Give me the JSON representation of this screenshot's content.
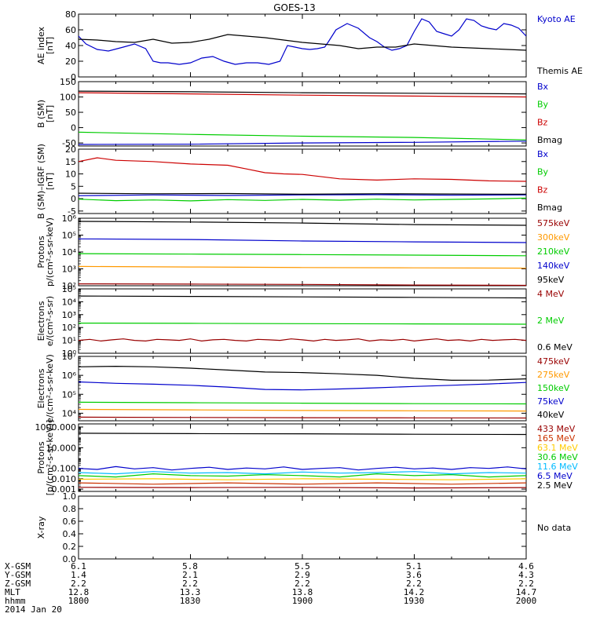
{
  "title": "GOES-13",
  "ephemeris": {
    "labels": [
      "X-GSM",
      "Y-GSM",
      "Z-GSM",
      "MLT",
      "hhmm"
    ],
    "date": "2014 Jan 20",
    "columns": [
      [
        "6.1",
        "1.4",
        "2.2",
        "12.8",
        "1800"
      ],
      [
        "5.8",
        "2.1",
        "2.2",
        "13.3",
        "1830"
      ],
      [
        "5.5",
        "2.9",
        "2.2",
        "13.8",
        "1900"
      ],
      [
        "5.1",
        "3.6",
        "2.2",
        "14.2",
        "1930"
      ],
      [
        "4.6",
        "4.3",
        "2.2",
        "14.7",
        "2000"
      ]
    ]
  },
  "chart_data": [
    {
      "type": "line",
      "id": "ae",
      "ylabel": [
        "AE index",
        "[nT]"
      ],
      "yscale": "linear",
      "ylim": [
        0,
        80
      ],
      "yticks": [
        0,
        20,
        40,
        60,
        80
      ],
      "ytick_labels": [
        "0",
        "20",
        "40",
        "60",
        "80"
      ],
      "xlim": [
        0,
        120
      ],
      "series": [
        {
          "name": "Kyoto AE",
          "color": "#0000cc",
          "x": [
            0,
            2,
            5,
            8,
            12,
            15,
            18,
            20,
            22,
            24,
            27,
            30,
            33,
            36,
            39,
            42,
            45,
            48,
            51,
            54,
            56,
            58,
            60,
            62,
            64,
            66,
            67,
            69,
            72,
            75,
            78,
            80,
            82,
            84,
            86,
            88,
            90,
            92,
            94,
            96,
            98,
            100,
            102,
            104,
            106,
            108,
            110,
            112,
            114,
            116,
            118,
            120
          ],
          "y": [
            52,
            42,
            35,
            33,
            38,
            42,
            36,
            20,
            18,
            18,
            16,
            18,
            24,
            26,
            20,
            16,
            18,
            18,
            16,
            20,
            40,
            38,
            36,
            35,
            36,
            38,
            45,
            60,
            68,
            62,
            50,
            45,
            38,
            34,
            36,
            40,
            58,
            74,
            70,
            58,
            55,
            52,
            60,
            74,
            72,
            65,
            62,
            60,
            68,
            66,
            62,
            52
          ]
        },
        {
          "name": "Themis AE",
          "color": "#000000",
          "x": [
            0,
            5,
            10,
            15,
            20,
            25,
            30,
            35,
            40,
            45,
            50,
            55,
            60,
            65,
            70,
            75,
            80,
            85,
            90,
            95,
            100,
            105,
            110,
            115,
            120
          ],
          "y": [
            48,
            47,
            45,
            44,
            48,
            43,
            44,
            48,
            54,
            52,
            50,
            47,
            44,
            42,
            40,
            36,
            38,
            38,
            42,
            40,
            38,
            37,
            36,
            35,
            34
          ]
        }
      ]
    },
    {
      "type": "line",
      "id": "bsm",
      "ylabel": [
        "B (SM)",
        "[nT]"
      ],
      "yscale": "linear",
      "ylim": [
        -60,
        150
      ],
      "yticks": [
        -50,
        0,
        50,
        100,
        150
      ],
      "ytick_labels": [
        "-50",
        "0",
        "50",
        "100",
        "150"
      ],
      "xlim": [
        0,
        120
      ],
      "series": [
        {
          "name": "Bx",
          "color": "#0000cc",
          "x": [
            0,
            30,
            60,
            90,
            120
          ],
          "y": [
            -55,
            -54,
            -50,
            -48,
            -44
          ]
        },
        {
          "name": "By",
          "color": "#00cc00",
          "x": [
            0,
            30,
            60,
            90,
            120
          ],
          "y": [
            -15,
            -22,
            -28,
            -32,
            -40
          ]
        },
        {
          "name": "Bz",
          "color": "#cc0000",
          "x": [
            0,
            30,
            60,
            90,
            120
          ],
          "y": [
            114,
            110,
            106,
            103,
            100
          ]
        },
        {
          "name": "Bmag",
          "color": "#000000",
          "x": [
            0,
            30,
            60,
            90,
            120
          ],
          "y": [
            119,
            117,
            114,
            112,
            110
          ]
        }
      ]
    },
    {
      "type": "line",
      "id": "bigrf",
      "ylabel": [
        "B (SM)–IGRF (SM)",
        "[nT]"
      ],
      "yscale": "linear",
      "ylim": [
        -6,
        20
      ],
      "yticks": [
        -5,
        0,
        5,
        10,
        15,
        20
      ],
      "ytick_labels": [
        "-5",
        "0",
        "5",
        "10",
        "15",
        "20"
      ],
      "xlim": [
        0,
        120
      ],
      "series": [
        {
          "name": "Bx",
          "color": "#0000cc",
          "x": [
            0,
            20,
            40,
            60,
            80,
            100,
            120
          ],
          "y": [
            1.2,
            1.5,
            1.3,
            1.5,
            1.6,
            1.4,
            1.5
          ]
        },
        {
          "name": "By",
          "color": "#00cc00",
          "x": [
            0,
            10,
            20,
            30,
            40,
            50,
            60,
            70,
            80,
            90,
            100,
            110,
            120
          ],
          "y": [
            -0.2,
            -0.8,
            -0.5,
            -0.9,
            -0.4,
            -0.7,
            -0.3,
            -0.6,
            -0.2,
            -0.5,
            -0.3,
            -0.1,
            0.2
          ]
        },
        {
          "name": "Bz",
          "color": "#cc0000",
          "x": [
            0,
            5,
            10,
            20,
            30,
            40,
            45,
            50,
            55,
            60,
            70,
            80,
            90,
            100,
            110,
            120
          ],
          "y": [
            15,
            16.5,
            15.5,
            15,
            14,
            13.5,
            12,
            10.5,
            10,
            9.8,
            8,
            7.5,
            8,
            7.8,
            7.2,
            7
          ]
        },
        {
          "name": "Bmag",
          "color": "#000000",
          "x": [
            0,
            20,
            40,
            60,
            80,
            100,
            120
          ],
          "y": [
            2.2,
            2.0,
            2.1,
            1.8,
            2.0,
            1.9,
            1.8
          ]
        }
      ]
    },
    {
      "type": "line",
      "id": "protons_kev",
      "ylabel": [
        "Protons",
        "p/(cm²-s-sr-keV)"
      ],
      "yscale": "log",
      "ylim": [
        100,
        1000000
      ],
      "yticks": [
        100,
        1000,
        10000,
        100000,
        1000000
      ],
      "ytick_labels": [
        "10²",
        "10³",
        "10⁴",
        "10⁵",
        "10⁶"
      ],
      "xlim": [
        0,
        120
      ],
      "series": [
        {
          "name": "575keV",
          "color": "#990000",
          "x": [
            0,
            30,
            60,
            90,
            120
          ],
          "y": [
            130,
            125,
            120,
            110,
            105
          ]
        },
        {
          "name": "300keV",
          "color": "#ff9900",
          "x": [
            0,
            30,
            60,
            90,
            120
          ],
          "y": [
            1400,
            1300,
            1200,
            1150,
            1100
          ]
        },
        {
          "name": "210keV",
          "color": "#00cc00",
          "x": [
            0,
            30,
            60,
            90,
            120
          ],
          "y": [
            8000,
            7500,
            7000,
            6500,
            6000
          ]
        },
        {
          "name": "140keV",
          "color": "#0000cc",
          "x": [
            0,
            30,
            60,
            90,
            120
          ],
          "y": [
            60000,
            55000,
            45000,
            40000,
            36000
          ]
        },
        {
          "name": "95keV",
          "color": "#000000",
          "x": [
            0,
            30,
            60,
            90,
            120
          ],
          "y": [
            650000,
            600000,
            520000,
            420000,
            380000
          ]
        }
      ]
    },
    {
      "type": "line",
      "id": "electrons_mev",
      "ylabel": [
        "Electrons",
        "e/(cm²-s-sr)"
      ],
      "yscale": "log",
      "ylim": [
        1,
        100000
      ],
      "yticks": [
        1,
        10,
        100,
        1000,
        10000,
        100000
      ],
      "ytick_labels": [
        "10⁰",
        "10¹",
        "10²",
        "10³",
        "10⁴",
        "10⁵"
      ],
      "xlim": [
        0,
        120
      ],
      "series": [
        {
          "name": "4 MeV",
          "color": "#990000",
          "x": [
            0,
            3,
            6,
            9,
            12,
            15,
            18,
            21,
            24,
            27,
            30,
            33,
            36,
            39,
            42,
            45,
            48,
            51,
            54,
            57,
            60,
            63,
            66,
            69,
            72,
            75,
            78,
            81,
            84,
            87,
            90,
            93,
            96,
            99,
            102,
            105,
            108,
            111,
            114,
            117,
            120
          ],
          "y": [
            10,
            12,
            9,
            11,
            13,
            10,
            9,
            12,
            11,
            10,
            13,
            9,
            11,
            12,
            10,
            9,
            12,
            11,
            10,
            13,
            11,
            9,
            12,
            10,
            11,
            13,
            9,
            11,
            10,
            12,
            9,
            11,
            13,
            10,
            11,
            9,
            12,
            10,
            11,
            12,
            10
          ]
        },
        {
          "name": "2 MeV",
          "color": "#00cc00",
          "x": [
            0,
            30,
            60,
            90,
            120
          ],
          "y": [
            220,
            210,
            200,
            190,
            180
          ]
        },
        {
          "name": "0.6 MeV",
          "color": "#000000",
          "x": [
            0,
            30,
            60,
            90,
            120
          ],
          "y": [
            28000,
            26000,
            24000,
            22000,
            20000
          ]
        }
      ]
    },
    {
      "type": "line",
      "id": "electrons_kev",
      "ylabel": [
        "Electrons",
        "e/(cm²-s-sr-keV)"
      ],
      "yscale": "log",
      "ylim": [
        4000,
        10000000
      ],
      "yticks": [
        10000,
        100000,
        1000000,
        10000000
      ],
      "ytick_labels": [
        "10⁴",
        "10⁵",
        "10⁶",
        "10⁷"
      ],
      "xlim": [
        0,
        120
      ],
      "series": [
        {
          "name": "475keV",
          "color": "#990000",
          "x": [
            0,
            30,
            60,
            90,
            120
          ],
          "y": [
            6200,
            6000,
            5800,
            5700,
            5600
          ]
        },
        {
          "name": "275keV",
          "color": "#ff9900",
          "x": [
            0,
            30,
            60,
            90,
            120
          ],
          "y": [
            16000,
            15000,
            14000,
            13500,
            13000
          ]
        },
        {
          "name": "150keV",
          "color": "#00cc00",
          "x": [
            0,
            30,
            60,
            90,
            120
          ],
          "y": [
            38000,
            36000,
            34000,
            32000,
            31000
          ]
        },
        {
          "name": "75keV",
          "color": "#0000cc",
          "x": [
            0,
            10,
            20,
            30,
            40,
            50,
            60,
            70,
            80,
            90,
            100,
            110,
            120
          ],
          "y": [
            450000,
            380000,
            340000,
            300000,
            240000,
            180000,
            170000,
            190000,
            220000,
            260000,
            300000,
            350000,
            420000
          ]
        },
        {
          "name": "40keV",
          "color": "#000000",
          "x": [
            0,
            10,
            20,
            30,
            40,
            50,
            60,
            70,
            80,
            90,
            100,
            110,
            120
          ],
          "y": [
            2800000,
            3000000,
            2800000,
            2400000,
            1900000,
            1500000,
            1400000,
            1200000,
            1000000,
            700000,
            550000,
            560000,
            650000
          ]
        }
      ]
    },
    {
      "type": "line",
      "id": "protons_mev",
      "ylabel": [
        "Protons",
        "[p/(cm²-s-sr-keV)]"
      ],
      "yscale": "log",
      "ylim": [
        0.0006,
        2000
      ],
      "yticks": [
        0.001,
        0.01,
        0.1,
        10,
        1000
      ],
      "ytick_labels": [
        "0.001",
        "0.010",
        "0.100",
        "10.000",
        "1000.000"
      ],
      "xlim": [
        0,
        120
      ],
      "series": [
        {
          "name": "433 MeV",
          "color": "#990000",
          "x": [
            0,
            30,
            60,
            90,
            120
          ],
          "y": [
            0.0015,
            0.0014,
            0.0015,
            0.0013,
            0.0014
          ]
        },
        {
          "name": "165 MeV",
          "color": "#cc3300",
          "x": [
            0,
            20,
            40,
            60,
            80,
            100,
            120
          ],
          "y": [
            0.004,
            0.003,
            0.004,
            0.003,
            0.004,
            0.003,
            0.004
          ]
        },
        {
          "name": "63.1 MeV",
          "color": "#ffcc00",
          "x": [
            0,
            20,
            40,
            60,
            80,
            100,
            120
          ],
          "y": [
            0.009,
            0.01,
            0.008,
            0.01,
            0.009,
            0.008,
            0.01
          ]
        },
        {
          "name": "30.6 MeV",
          "color": "#00cc00",
          "x": [
            0,
            10,
            20,
            30,
            40,
            50,
            60,
            70,
            80,
            90,
            100,
            110,
            120
          ],
          "y": [
            0.02,
            0.015,
            0.03,
            0.02,
            0.018,
            0.025,
            0.02,
            0.015,
            0.03,
            0.02,
            0.025,
            0.015,
            0.02
          ]
        },
        {
          "name": "11.6 MeV",
          "color": "#00bbff",
          "x": [
            0,
            10,
            20,
            30,
            40,
            50,
            60,
            70,
            80,
            90,
            100,
            110,
            120
          ],
          "y": [
            0.04,
            0.03,
            0.05,
            0.035,
            0.04,
            0.03,
            0.045,
            0.035,
            0.04,
            0.05,
            0.03,
            0.04,
            0.035
          ]
        },
        {
          "name": "6.5 MeV",
          "color": "#0000cc",
          "x": [
            0,
            5,
            10,
            15,
            20,
            25,
            30,
            35,
            40,
            45,
            50,
            55,
            60,
            65,
            70,
            75,
            80,
            85,
            90,
            95,
            100,
            105,
            110,
            115,
            120
          ],
          "y": [
            0.1,
            0.08,
            0.15,
            0.09,
            0.12,
            0.07,
            0.1,
            0.13,
            0.08,
            0.11,
            0.09,
            0.14,
            0.08,
            0.1,
            0.12,
            0.07,
            0.1,
            0.13,
            0.09,
            0.11,
            0.08,
            0.12,
            0.1,
            0.14,
            0.09
          ]
        },
        {
          "name": "2.5 MeV",
          "color": "#000000",
          "x": [
            0,
            30,
            60,
            90,
            120
          ],
          "y": [
            250,
            230,
            220,
            200,
            190
          ]
        }
      ]
    },
    {
      "type": "line",
      "id": "xray",
      "ylabel": [
        "X-ray"
      ],
      "yscale": "linear",
      "ylim": [
        0,
        1
      ],
      "yticks": [
        0,
        0.2,
        0.4,
        0.6,
        0.8,
        1.0
      ],
      "ytick_labels": [
        "0.0",
        "0.2",
        "0.4",
        "0.6",
        "0.8",
        "1.0"
      ],
      "xlim": [
        0,
        120
      ],
      "series": [],
      "note": "No data"
    }
  ]
}
